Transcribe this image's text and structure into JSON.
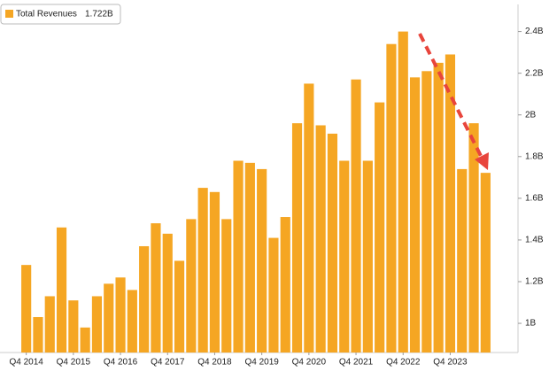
{
  "chart_data": {
    "type": "bar",
    "categories": [
      "Q4 2014",
      null,
      null,
      null,
      "Q4 2015",
      null,
      null,
      null,
      "Q4 2016",
      null,
      null,
      null,
      "Q4 2017",
      null,
      null,
      null,
      "Q4 2018",
      null,
      null,
      null,
      "Q4 2019",
      null,
      null,
      null,
      "Q4 2020",
      null,
      null,
      null,
      "Q4 2021",
      null,
      null,
      null,
      "Q4 2022",
      null,
      null,
      null,
      "Q4 2023",
      null,
      null,
      null
    ],
    "series": [
      {
        "name": "Total Revenues",
        "color": "#f5a623",
        "values": [
          1.28,
          1.03,
          1.13,
          1.46,
          1.11,
          0.98,
          1.13,
          1.19,
          1.22,
          1.16,
          1.37,
          1.48,
          1.43,
          1.3,
          1.5,
          1.65,
          1.63,
          1.5,
          1.78,
          1.77,
          1.74,
          1.41,
          1.51,
          1.96,
          2.15,
          1.95,
          1.91,
          1.78,
          2.17,
          1.78,
          2.06,
          2.34,
          2.4,
          2.18,
          2.21,
          2.25,
          2.29,
          1.74,
          1.96,
          1.722
        ],
        "legend_label": "1.722B"
      }
    ],
    "ylim": [
      0.86,
      2.53
    ],
    "yticks": [
      {
        "value": 1,
        "label": "1B"
      },
      {
        "value": 1.2,
        "label": "1.2B"
      },
      {
        "value": 1.4,
        "label": "1.4B"
      },
      {
        "value": 1.6,
        "label": "1.6B"
      },
      {
        "value": 1.8,
        "label": "1.8B"
      },
      {
        "value": 2,
        "label": "2B"
      },
      {
        "value": 2.2,
        "label": "2.2B"
      },
      {
        "value": 2.4,
        "label": "2.4B"
      }
    ],
    "grid": false
  }
}
